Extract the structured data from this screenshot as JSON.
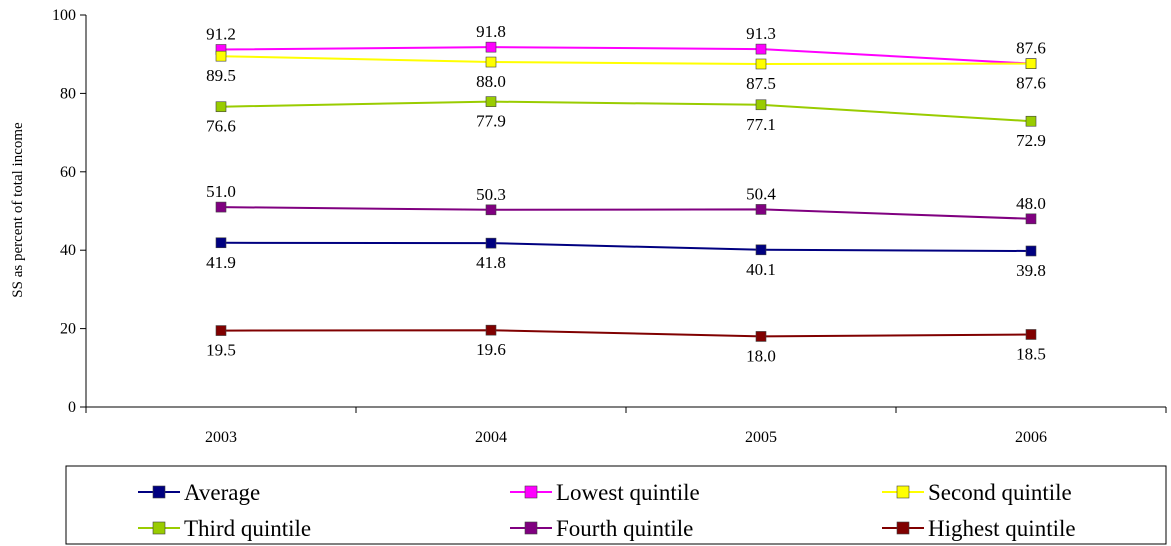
{
  "chart_data": {
    "type": "line",
    "title": "",
    "xlabel": "",
    "ylabel": "SS as percent of total income",
    "ylim": [
      0,
      100
    ],
    "yticks": [
      0,
      20,
      40,
      60,
      80,
      100
    ],
    "x": [
      "2003",
      "2004",
      "2005",
      "2006"
    ],
    "grid": false,
    "legend_position": "bottom",
    "series": [
      {
        "name": "Average",
        "color": "#000080",
        "values": [
          41.9,
          41.8,
          40.1,
          39.8
        ],
        "label_position": "below"
      },
      {
        "name": "Lowest quintile",
        "color": "#FF00FF",
        "values": [
          91.2,
          91.8,
          91.3,
          87.6
        ],
        "label_position": "above"
      },
      {
        "name": "Second quintile",
        "color": "#FFFF00",
        "values": [
          89.5,
          88.0,
          87.5,
          87.6
        ],
        "label_position": "below"
      },
      {
        "name": "Third quintile",
        "color": "#99CC00",
        "values": [
          76.6,
          77.9,
          77.1,
          72.9
        ],
        "label_position": "below"
      },
      {
        "name": "Fourth quintile",
        "color": "#800080",
        "values": [
          51.0,
          50.3,
          50.4,
          48.0
        ],
        "label_position": "above"
      },
      {
        "name": "Highest quintile",
        "color": "#800000",
        "values": [
          19.5,
          19.6,
          18.0,
          18.5
        ],
        "label_position": "below"
      }
    ]
  }
}
